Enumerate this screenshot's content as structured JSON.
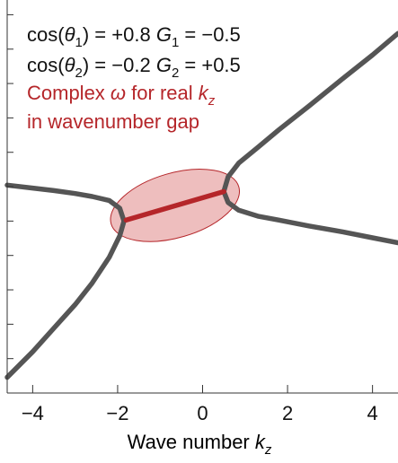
{
  "chart_data": {
    "type": "line",
    "xlabel": "Wave number",
    "xlabel_var": "k",
    "xlabel_sub": "z",
    "xlim": [
      -4.6,
      4.6
    ],
    "ylim": [
      -1.0,
      1.0
    ],
    "x_ticks": [
      -4,
      -2,
      0,
      2,
      4
    ],
    "x_tick_labels": [
      "−4",
      "−2",
      "0",
      "2",
      "4"
    ],
    "y_ticks_unlabeled": [
      -0.825,
      -0.65,
      -0.475,
      -0.3,
      -0.125,
      0.05,
      0.225,
      0.4,
      0.575,
      0.75,
      0.925
    ],
    "grid": false,
    "annotations": [
      {
        "id": "line1",
        "text_cos": "cos(",
        "var": "θ",
        "sub": "1",
        "text_val": ") = +0.8",
        "gvar": "G",
        "gsub": "1",
        "gval": " = −0.5",
        "color": "#111111"
      },
      {
        "id": "line2",
        "text_cos": "cos(",
        "var": "θ",
        "sub": "2",
        "text_val": ") = −0.2",
        "gvar": "G",
        "gsub": "2",
        "gval": " = +0.5",
        "color": "#111111"
      },
      {
        "id": "line3",
        "text": "Complex ",
        "var": "ω",
        "text2": " for real ",
        "kvar": "k",
        "ksub": "z",
        "color": "#b5262a"
      },
      {
        "id": "line4",
        "text": "in wavenumber gap",
        "color": "#b5262a"
      }
    ],
    "series": [
      {
        "style": "real-branches",
        "color": "#555555",
        "branches": [
          {
            "x": [
              -1.85,
              -1.95,
              -2.2,
              -2.6,
              -3.0,
              -3.5,
              -4.0,
              -4.6
            ],
            "y": [
              -0.125,
              -0.06,
              -0.02,
              0.0,
              0.015,
              0.03,
              0.043,
              0.058
            ]
          },
          {
            "x": [
              -1.85,
              -1.95,
              -2.2,
              -2.6,
              -3.0,
              -3.5,
              -4.0,
              -4.6
            ],
            "y": [
              -0.125,
              -0.2,
              -0.31,
              -0.44,
              -0.55,
              -0.67,
              -0.79,
              -0.92
            ]
          },
          {
            "x": [
              0.5,
              0.6,
              0.85,
              1.3,
              1.8,
              2.5,
              3.3,
              4.0,
              4.6
            ],
            "y": [
              0.025,
              0.1,
              0.17,
              0.25,
              0.34,
              0.46,
              0.6,
              0.72,
              0.83
            ]
          },
          {
            "x": [
              0.5,
              0.6,
              0.85,
              1.3,
              1.8,
              2.5,
              3.3,
              4.0,
              4.6
            ],
            "y": [
              0.025,
              -0.03,
              -0.07,
              -0.1,
              -0.12,
              -0.15,
              -0.18,
              -0.21,
              -0.235
            ]
          }
        ]
      },
      {
        "style": "gap-segment",
        "color": "#b5262a",
        "x": [
          -1.8,
          0.5
        ],
        "y": [
          -0.12,
          0.025
        ]
      }
    ],
    "gap_ellipse": {
      "center": [
        -0.65,
        -0.045
      ],
      "fill": "#e8a8a8",
      "stroke": "#b5262a"
    }
  }
}
